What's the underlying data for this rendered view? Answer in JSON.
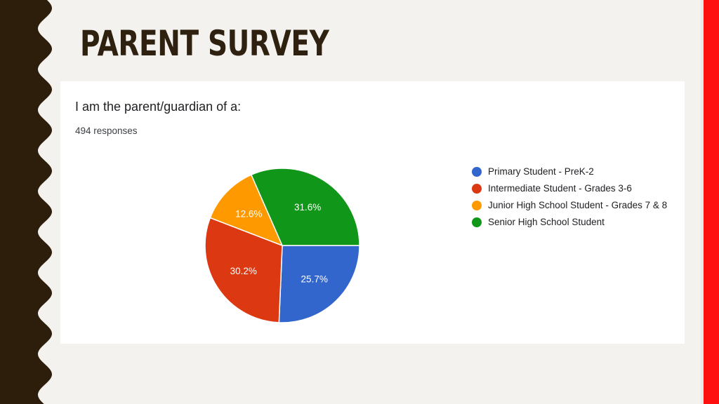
{
  "slide": {
    "title": "PARENT SURVEY"
  },
  "card": {
    "question": "I am the parent/guardian of a:",
    "responses": "494 responses"
  },
  "chart_data": {
    "type": "pie",
    "categories": [
      "Primary Student - PreK-2",
      "Intermediate Student - Grades 3-6",
      "Junior High School Student - Grades 7 & 8",
      "Senior High School Student"
    ],
    "values": [
      25.7,
      30.2,
      12.6,
      31.6
    ],
    "labels": [
      "25.7%",
      "30.2%",
      "12.6%",
      "31.6%"
    ],
    "colors": [
      "#3366cc",
      "#dc3912",
      "#ff9900",
      "#109618"
    ],
    "legend_position": "right"
  },
  "theme": {
    "title_color": "#2e2110",
    "left_border_color": "#2c1e0a",
    "right_stripe_color": "#ff1010"
  }
}
